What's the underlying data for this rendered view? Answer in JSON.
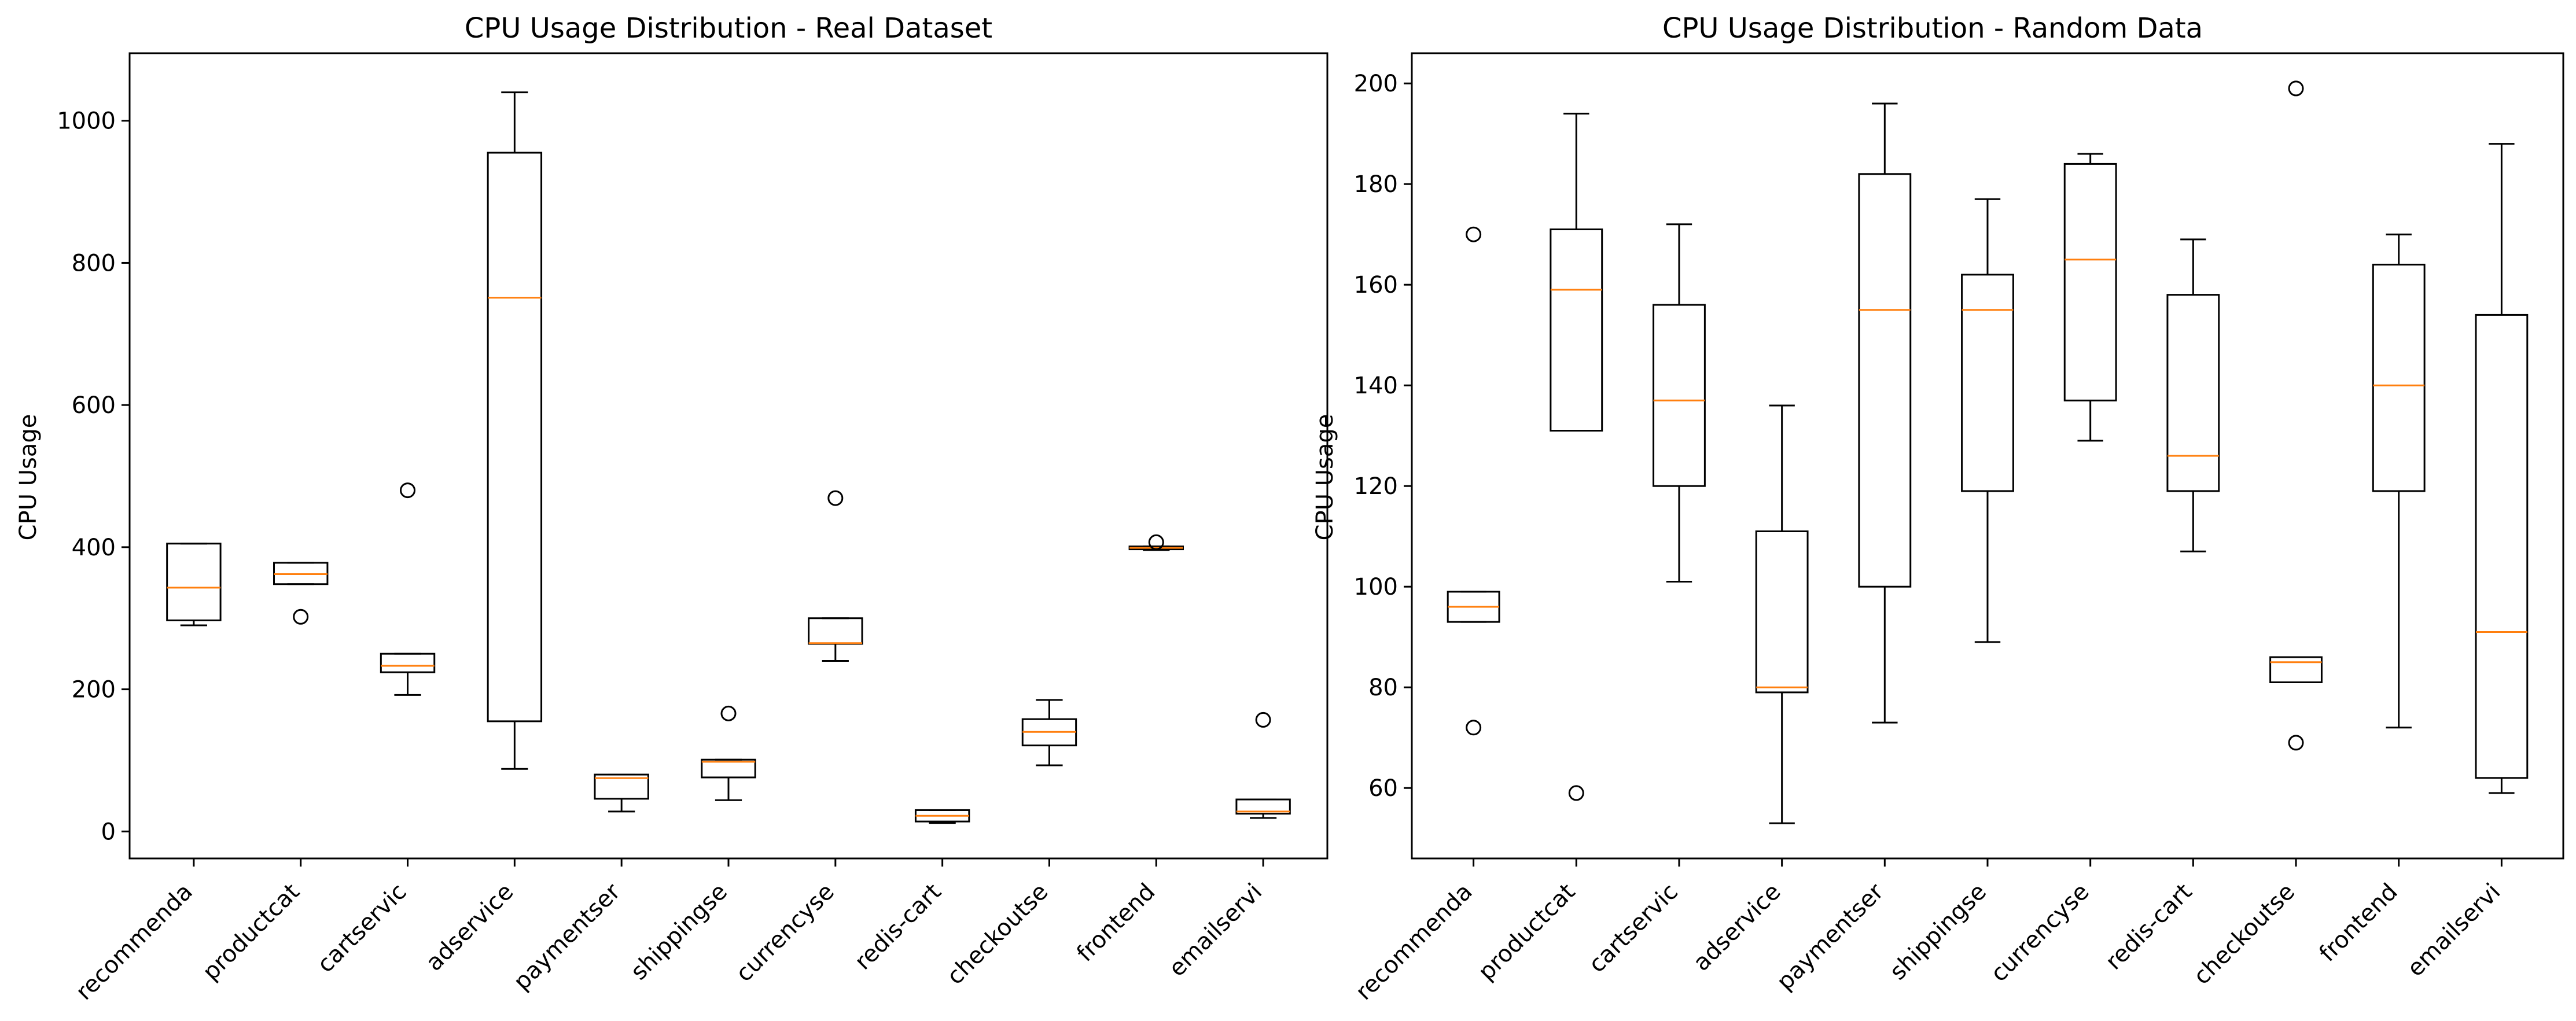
{
  "chart_data": [
    {
      "type": "box",
      "title": "CPU Usage Distribution - Real Dataset",
      "xlabel": "",
      "ylabel": "CPU Usage",
      "ylim": [
        -38,
        1095
      ],
      "yticks": [
        0,
        200,
        400,
        600,
        800,
        1000
      ],
      "grid": false,
      "categories": [
        "recommenda",
        "productcat",
        "cartservic",
        "adservice",
        "paymentser",
        "shippingse",
        "currencyse",
        "redis-cart",
        "checkoutse",
        "frontend",
        "emailservi"
      ],
      "boxes": [
        {
          "whislo": 290,
          "q1": 297,
          "med": 343,
          "q3": 405,
          "whishi": 405,
          "fliers": []
        },
        {
          "whislo": 348,
          "q1": 348,
          "med": 362,
          "q3": 378,
          "whishi": 378,
          "fliers": [
            302
          ]
        },
        {
          "whislo": 192,
          "q1": 224,
          "med": 233,
          "q3": 250,
          "whishi": 250,
          "fliers": [
            480
          ]
        },
        {
          "whislo": 88,
          "q1": 155,
          "med": 751,
          "q3": 955,
          "whishi": 1040,
          "fliers": []
        },
        {
          "whislo": 28,
          "q1": 46,
          "med": 75,
          "q3": 80,
          "whishi": 80,
          "fliers": []
        },
        {
          "whislo": 44,
          "q1": 76,
          "med": 98,
          "q3": 101,
          "whishi": 101,
          "fliers": [
            166
          ]
        },
        {
          "whislo": 240,
          "q1": 264,
          "med": 265,
          "q3": 300,
          "whishi": 300,
          "fliers": [
            469
          ]
        },
        {
          "whislo": 12,
          "q1": 14,
          "med": 22,
          "q3": 30,
          "whishi": 30,
          "fliers": []
        },
        {
          "whislo": 93,
          "q1": 121,
          "med": 140,
          "q3": 158,
          "whishi": 185,
          "fliers": []
        },
        {
          "whislo": 396,
          "q1": 397,
          "med": 399,
          "q3": 401,
          "whishi": 401,
          "fliers": [
            407
          ]
        },
        {
          "whislo": 19,
          "q1": 25,
          "med": 28,
          "q3": 45,
          "whishi": 45,
          "fliers": [
            157
          ]
        }
      ],
      "colors": {
        "box": "#000000",
        "median": "#ff7f0e"
      }
    },
    {
      "type": "box",
      "title": "CPU Usage Distribution - Random Data",
      "xlabel": "",
      "ylabel": "CPU Usage",
      "ylim": [
        46,
        206
      ],
      "yticks": [
        60,
        80,
        100,
        120,
        140,
        160,
        180,
        200
      ],
      "grid": false,
      "categories": [
        "recommenda",
        "productcat",
        "cartservic",
        "adservice",
        "paymentser",
        "shippingse",
        "currencyse",
        "redis-cart",
        "checkoutse",
        "frontend",
        "emailservi"
      ],
      "boxes": [
        {
          "whislo": 93,
          "q1": 93,
          "med": 96,
          "q3": 99,
          "whishi": 99,
          "fliers": [
            72,
            170
          ]
        },
        {
          "whislo": 131,
          "q1": 131,
          "med": 159,
          "q3": 171,
          "whishi": 194,
          "fliers": [
            59
          ]
        },
        {
          "whislo": 101,
          "q1": 120,
          "med": 137,
          "q3": 156,
          "whishi": 172,
          "fliers": []
        },
        {
          "whislo": 53,
          "q1": 79,
          "med": 80,
          "q3": 111,
          "whishi": 136,
          "fliers": []
        },
        {
          "whislo": 73,
          "q1": 100,
          "med": 155,
          "q3": 182,
          "whishi": 196,
          "fliers": []
        },
        {
          "whislo": 89,
          "q1": 119,
          "med": 155,
          "q3": 162,
          "whishi": 177,
          "fliers": []
        },
        {
          "whislo": 129,
          "q1": 137,
          "med": 165,
          "q3": 184,
          "whishi": 186,
          "fliers": []
        },
        {
          "whislo": 107,
          "q1": 119,
          "med": 126,
          "q3": 158,
          "whishi": 169,
          "fliers": []
        },
        {
          "whislo": 81,
          "q1": 81,
          "med": 85,
          "q3": 86,
          "whishi": 86,
          "fliers": [
            69,
            199
          ]
        },
        {
          "whislo": 72,
          "q1": 119,
          "med": 140,
          "q3": 164,
          "whishi": 170,
          "fliers": []
        },
        {
          "whislo": 59,
          "q1": 62,
          "med": 91,
          "q3": 154,
          "whishi": 188,
          "fliers": []
        }
      ],
      "colors": {
        "box": "#000000",
        "median": "#ff7f0e"
      }
    }
  ]
}
